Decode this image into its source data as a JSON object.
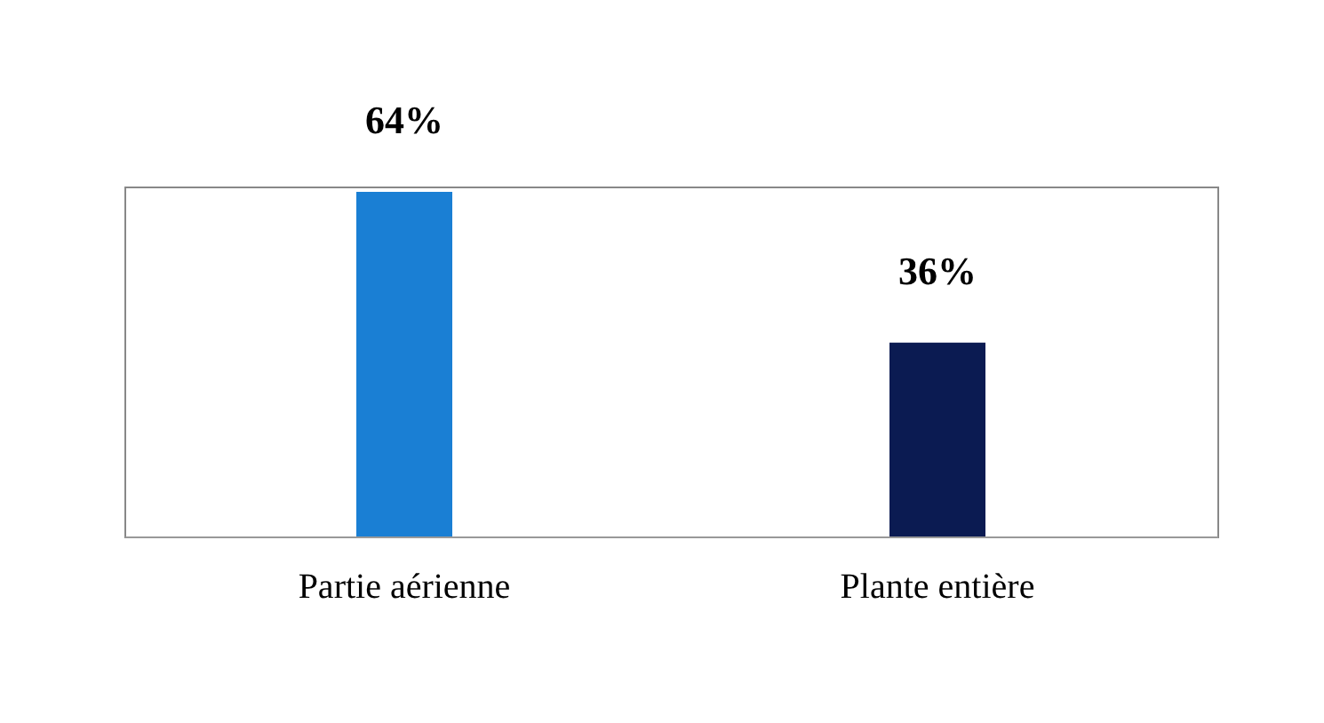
{
  "chart_data": {
    "type": "bar",
    "categories": [
      "Partie aérienne",
      "Plante entière"
    ],
    "values": [
      64,
      36
    ],
    "colors": [
      "#1a7fd4",
      "#0b1b52"
    ],
    "value_labels": [
      "64%",
      "36%"
    ],
    "grid": false
  }
}
